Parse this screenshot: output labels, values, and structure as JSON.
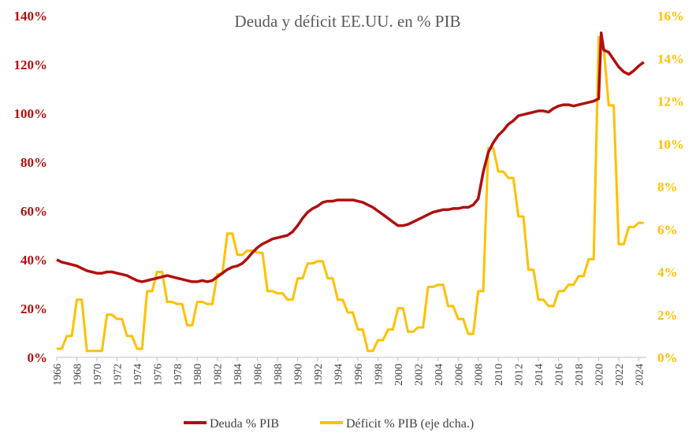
{
  "colors": {
    "debt": "#B00F0F",
    "deficit": "#FFC000",
    "axis": "#BFBFBF",
    "text": "#404040"
  },
  "chart_data": {
    "type": "line",
    "title": "Deuda y déficit EE.UU. en % PIB",
    "left_axis": {
      "ticks": [
        0,
        20,
        40,
        60,
        80,
        100,
        120,
        140
      ],
      "tick_labels": [
        "0%",
        "20%",
        "40%",
        "60%",
        "80%",
        "100%",
        "120%",
        "140%"
      ],
      "range": [
        0,
        140
      ]
    },
    "right_axis": {
      "ticks": [
        0,
        2,
        4,
        6,
        8,
        10,
        12,
        14,
        16
      ],
      "tick_labels": [
        "0%",
        "2%",
        "4%",
        "6%",
        "8%",
        "10%",
        "12%",
        "14%",
        "16%"
      ],
      "range": [
        0,
        16
      ]
    },
    "x_range": [
      1966,
      2024.75
    ],
    "x_ticks": [
      "1966",
      "1968",
      "1970",
      "1972",
      "1974",
      "1976",
      "1978",
      "1980",
      "1982",
      "1984",
      "1986",
      "1988",
      "1990",
      "1992",
      "1994",
      "1996",
      "1998",
      "2000",
      "2002",
      "2004",
      "2006",
      "2008",
      "2010",
      "2012",
      "2014",
      "2016",
      "2018",
      "2020",
      "2022",
      "2024"
    ],
    "legend": [
      "Deuda % PIB",
      "Déficit % PIB (eje dcha.)"
    ],
    "series": [
      {
        "name": "Deuda % PIB",
        "axis": "left",
        "x": [
          1966,
          1966.5,
          1967,
          1967.5,
          1968,
          1968.5,
          1969,
          1969.5,
          1970,
          1970.5,
          1971,
          1971.5,
          1972,
          1972.5,
          1973,
          1973.5,
          1974,
          1974.5,
          1975,
          1975.5,
          1976,
          1976.5,
          1977,
          1977.5,
          1978,
          1978.5,
          1979,
          1979.5,
          1980,
          1980.5,
          1981,
          1981.5,
          1982,
          1982.5,
          1983,
          1983.5,
          1984,
          1984.5,
          1985,
          1985.5,
          1986,
          1986.5,
          1987,
          1987.5,
          1988,
          1988.5,
          1989,
          1989.5,
          1990,
          1990.5,
          1991,
          1991.5,
          1992,
          1992.5,
          1993,
          1993.5,
          1994,
          1994.5,
          1995,
          1995.5,
          1996,
          1996.5,
          1997,
          1997.5,
          1998,
          1998.5,
          1999,
          1999.5,
          2000,
          2000.5,
          2001,
          2001.5,
          2002,
          2002.5,
          2003,
          2003.5,
          2004,
          2004.5,
          2005,
          2005.5,
          2006,
          2006.5,
          2007,
          2007.5,
          2008,
          2008.5,
          2009,
          2009.5,
          2010,
          2010.5,
          2011,
          2011.5,
          2012,
          2012.5,
          2013,
          2013.5,
          2014,
          2014.5,
          2015,
          2015.5,
          2016,
          2016.5,
          2017,
          2017.5,
          2018,
          2018.5,
          2019,
          2019.5,
          2020,
          2020.25,
          2020.5,
          2021,
          2021.5,
          2022,
          2022.5,
          2023,
          2023.5,
          2024,
          2024.5
        ],
        "y": [
          40,
          39,
          38.5,
          38,
          37.5,
          36.5,
          35.5,
          35,
          34.5,
          34.5,
          35,
          35,
          34.5,
          34,
          33.5,
          32.5,
          31.5,
          31,
          31.5,
          32,
          32.5,
          33,
          33.5,
          33,
          32.5,
          32,
          31.5,
          31,
          31,
          31.5,
          31,
          31.5,
          33,
          34.5,
          36,
          37,
          37.5,
          38.5,
          40.5,
          43,
          45,
          46.5,
          47.5,
          48.5,
          49,
          49.5,
          50,
          51.5,
          54,
          57,
          59.5,
          61,
          62,
          63.5,
          64,
          64,
          64.5,
          64.5,
          64.5,
          64.5,
          64,
          63.5,
          62.5,
          61.5,
          60,
          58.5,
          57,
          55.5,
          54,
          54,
          54.5,
          55.5,
          56.5,
          57.5,
          58.5,
          59.5,
          60,
          60.5,
          60.5,
          61,
          61,
          61.5,
          61.5,
          62.5,
          65,
          76,
          84,
          88,
          91,
          93,
          95.5,
          97,
          99,
          99.5,
          100,
          100.5,
          101,
          101,
          100.5,
          102,
          103,
          103.5,
          103.5,
          103,
          103.5,
          104,
          104.5,
          105,
          106,
          133,
          126,
          125,
          122,
          119,
          117,
          116,
          117.5,
          119.5,
          121
        ]
      },
      {
        "name": "Déficit % PIB (eje dcha.)",
        "axis": "right",
        "x": [
          1966,
          1966.5,
          1967,
          1967.5,
          1968,
          1968.5,
          1969,
          1969.5,
          1970,
          1970.5,
          1971,
          1971.5,
          1972,
          1972.5,
          1973,
          1973.5,
          1974,
          1974.5,
          1975,
          1975.5,
          1976,
          1976.5,
          1977,
          1977.5,
          1978,
          1978.5,
          1979,
          1979.5,
          1980,
          1980.5,
          1981,
          1981.5,
          1982,
          1982.5,
          1983,
          1983.5,
          1984,
          1984.5,
          1985,
          1985.5,
          1986,
          1986.5,
          1987,
          1987.5,
          1988,
          1988.5,
          1989,
          1989.5,
          1990,
          1990.5,
          1991,
          1991.5,
          1992,
          1992.5,
          1993,
          1993.5,
          1994,
          1994.5,
          1995,
          1995.5,
          1996,
          1996.5,
          1997,
          1997.5,
          1998,
          1998.5,
          1999,
          1999.5,
          2000,
          2000.5,
          2001,
          2001.5,
          2002,
          2002.5,
          2003,
          2003.5,
          2004,
          2004.5,
          2005,
          2005.5,
          2006,
          2006.5,
          2007,
          2007.5,
          2008,
          2008.5,
          2009,
          2009.5,
          2010,
          2010.5,
          2011,
          2011.5,
          2012,
          2012.5,
          2013,
          2013.5,
          2014,
          2014.5,
          2015,
          2015.5,
          2016,
          2016.5,
          2017,
          2017.5,
          2018,
          2018.5,
          2019,
          2019.5,
          2020,
          2020.25,
          2020.5,
          2021,
          2021.5,
          2022,
          2022.5,
          2023,
          2023.5,
          2024,
          2024.5
        ],
        "y": [
          0.4,
          0.4,
          1,
          1,
          2.7,
          2.7,
          0.3,
          0.3,
          0.3,
          0.3,
          2,
          2,
          1.8,
          1.8,
          1,
          1,
          0.4,
          0.4,
          3.1,
          3.1,
          4,
          4,
          2.6,
          2.6,
          2.5,
          2.5,
          1.5,
          1.5,
          2.6,
          2.6,
          2.5,
          2.5,
          3.9,
          3.9,
          5.8,
          5.8,
          4.8,
          4.8,
          5,
          5,
          4.9,
          4.9,
          3.1,
          3.1,
          3,
          3,
          2.7,
          2.7,
          3.7,
          3.7,
          4.4,
          4.4,
          4.5,
          4.5,
          3.7,
          3.7,
          2.7,
          2.7,
          2.1,
          2.1,
          1.3,
          1.3,
          0.3,
          0.3,
          0.8,
          0.8,
          1.3,
          1.3,
          2.3,
          2.3,
          1.2,
          1.2,
          1.4,
          1.4,
          3.3,
          3.3,
          3.4,
          3.4,
          2.4,
          2.4,
          1.8,
          1.8,
          1.1,
          1.1,
          3.1,
          3.1,
          9.8,
          9.8,
          8.7,
          8.7,
          8.4,
          8.4,
          6.6,
          6.6,
          4.1,
          4.1,
          2.7,
          2.7,
          2.4,
          2.4,
          3.1,
          3.1,
          3.4,
          3.4,
          3.8,
          3.8,
          4.6,
          4.6,
          15,
          14.5,
          14.5,
          11.8,
          11.8,
          5.3,
          5.3,
          6.1,
          6.1,
          6.3,
          6.3
        ]
      }
    ]
  }
}
